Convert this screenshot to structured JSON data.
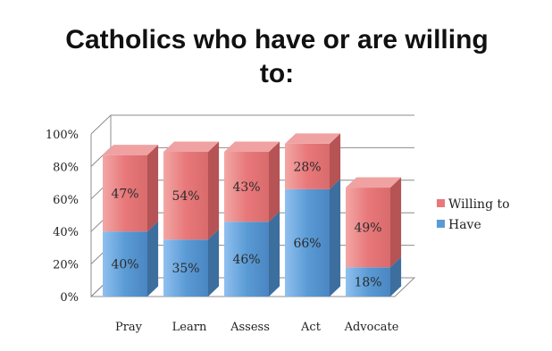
{
  "chart_data": {
    "type": "bar",
    "stacked": true,
    "three_d": true,
    "title_lines": [
      "Catholics who have or are willing",
      "to:"
    ],
    "categories": [
      "Pray",
      "Learn",
      "Assess",
      "Act",
      "Advocate"
    ],
    "series": [
      {
        "name": "Have",
        "values": [
          40,
          35,
          46,
          66,
          18
        ],
        "labels": [
          "40%",
          "35%",
          "46%",
          "66%",
          "18%"
        ],
        "color": "#5b9bd5"
      },
      {
        "name": "Willing to",
        "values": [
          47,
          54,
          43,
          28,
          49
        ],
        "labels": [
          "47%",
          "54%",
          "43%",
          "28%",
          "49%"
        ],
        "color": "#e8787a"
      }
    ],
    "y_ticks": [
      "0%",
      "20%",
      "40%",
      "60%",
      "80%",
      "100%"
    ],
    "ylim": [
      0,
      100
    ],
    "grid": true,
    "legend": [
      "Willing to",
      "Have"
    ],
    "legend_position": "right"
  }
}
